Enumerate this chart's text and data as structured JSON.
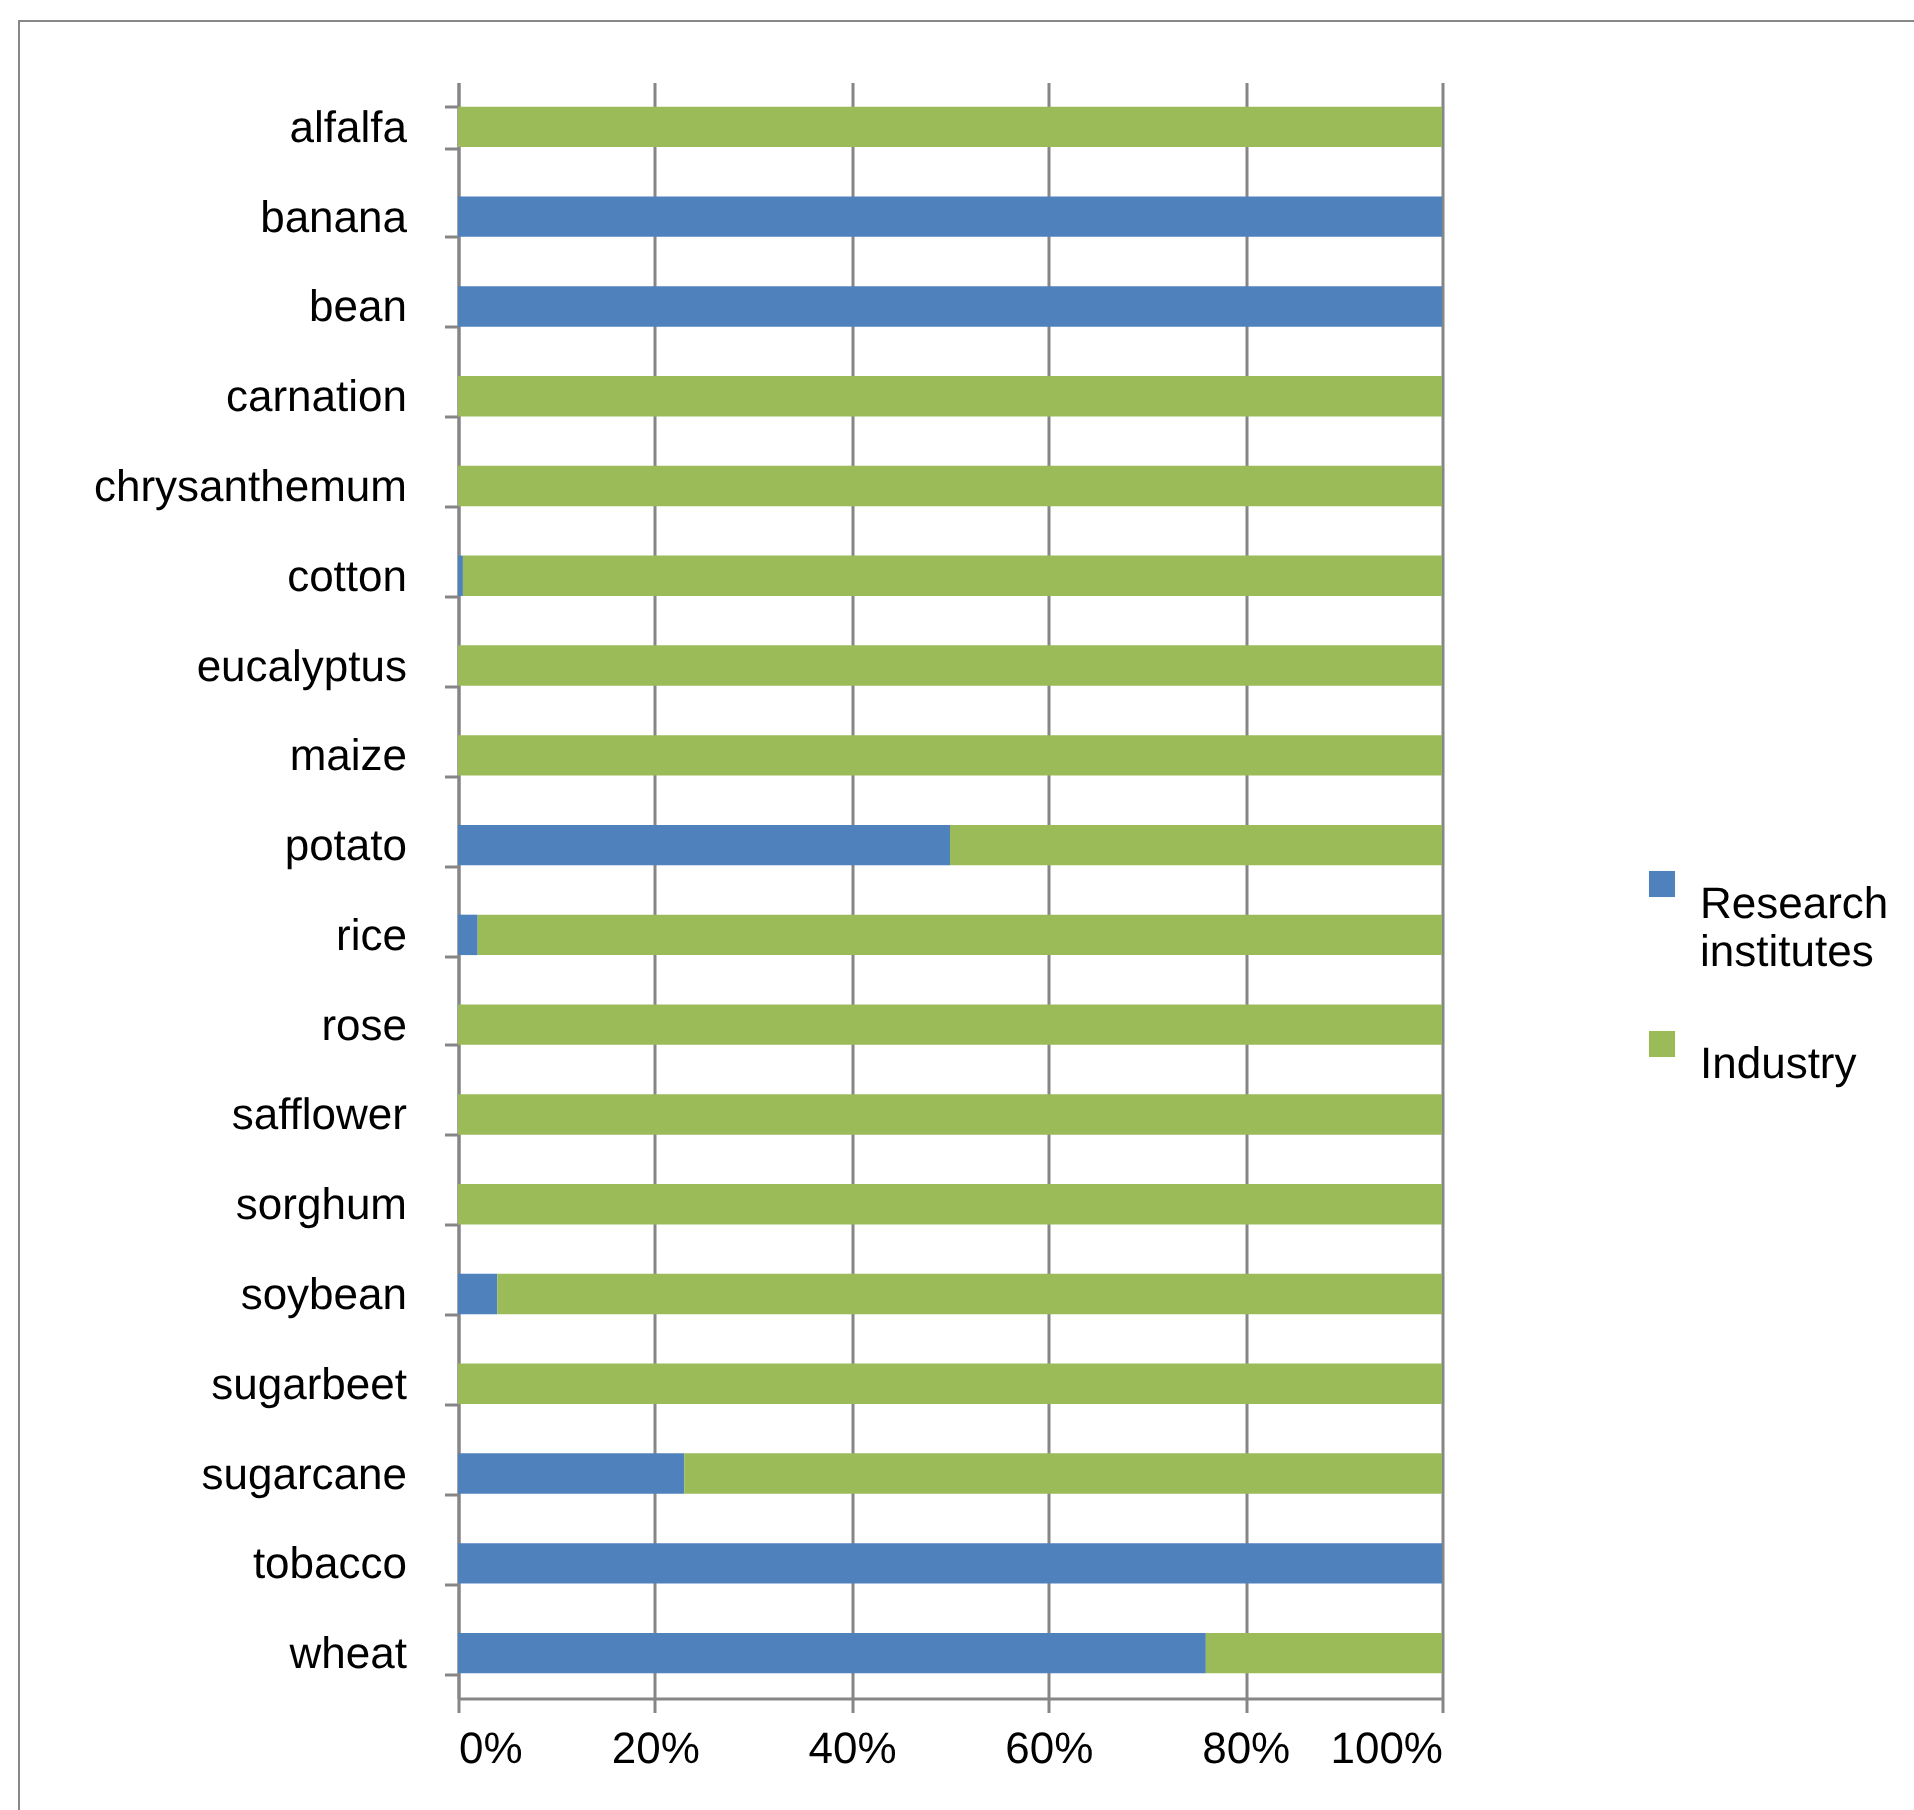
{
  "chart_data": {
    "type": "bar",
    "orientation": "horizontal",
    "stacked": true,
    "categories": [
      "alfalfa",
      "banana",
      "bean",
      "carnation",
      "chrysanthemum",
      "cotton",
      "eucalyptus",
      "maize",
      "potato",
      "rice",
      "rose",
      "safflower",
      "sorghum",
      "soybean",
      "sugarbeet",
      "sugarcane",
      "tobacco",
      "wheat"
    ],
    "series": [
      {
        "name": "Research institutes",
        "color": "#4f81bd",
        "values": [
          0,
          100,
          100,
          0,
          0,
          0.5,
          0,
          0,
          50,
          2,
          0,
          0,
          0,
          4,
          0,
          23,
          100,
          76
        ]
      },
      {
        "name": "Industry",
        "color": "#9bbb59",
        "values": [
          100,
          0,
          0,
          100,
          100,
          99.5,
          100,
          100,
          50,
          98,
          100,
          100,
          100,
          96,
          100,
          77,
          0,
          24
        ]
      }
    ],
    "xlim": [
      0,
      100
    ],
    "xticks": [
      {
        "value": 0,
        "label": "0%"
      },
      {
        "value": 20,
        "label": "20%"
      },
      {
        "value": 40,
        "label": "40%"
      },
      {
        "value": 60,
        "label": "60%"
      },
      {
        "value": 80,
        "label": "80%"
      },
      {
        "value": 100,
        "label": "100%"
      }
    ],
    "grid": "x",
    "legend": "right"
  }
}
